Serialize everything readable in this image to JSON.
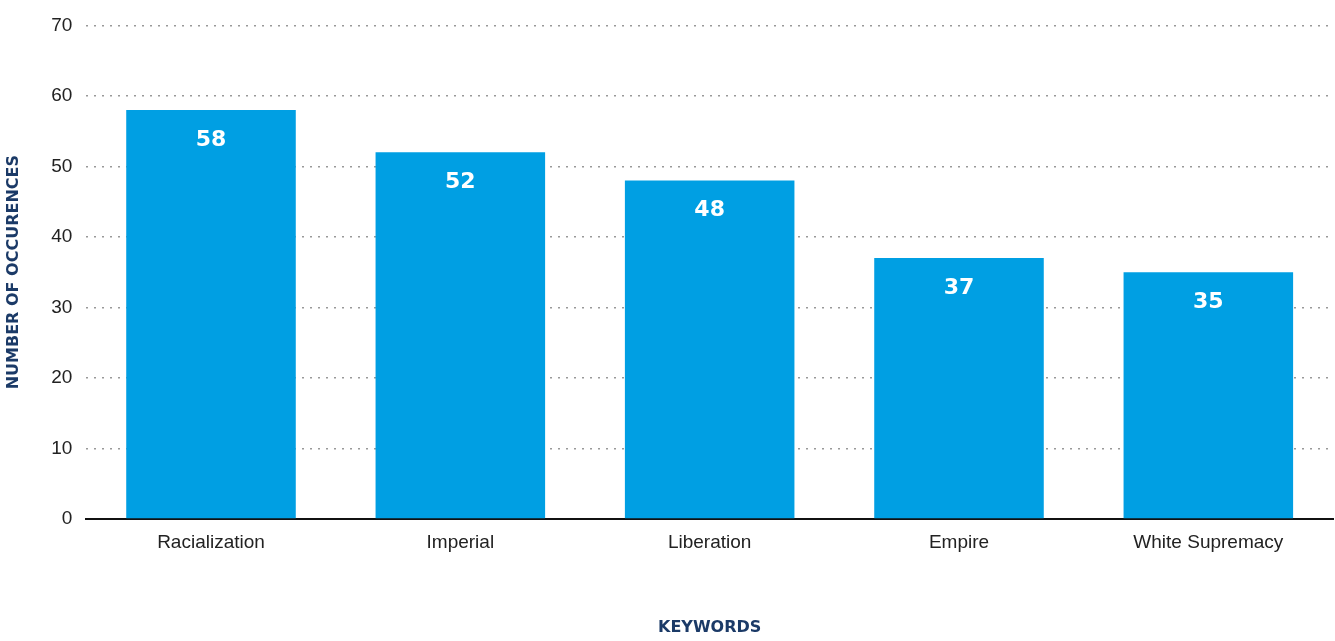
{
  "chart_data": {
    "type": "bar",
    "xlabel": "KEYWORDS",
    "ylabel": "NUMBER OF OCCURENCES",
    "categories": [
      "Racialization",
      "Imperial",
      "Liberation",
      "Empire",
      "White Supremacy"
    ],
    "values": [
      58,
      52,
      48,
      37,
      35
    ],
    "color": "#009fe3",
    "ylim": [
      0,
      70
    ],
    "yticks": [
      0,
      10,
      20,
      30,
      40,
      50,
      60,
      70
    ],
    "grid": "y",
    "data_labels": true,
    "legend": false
  }
}
